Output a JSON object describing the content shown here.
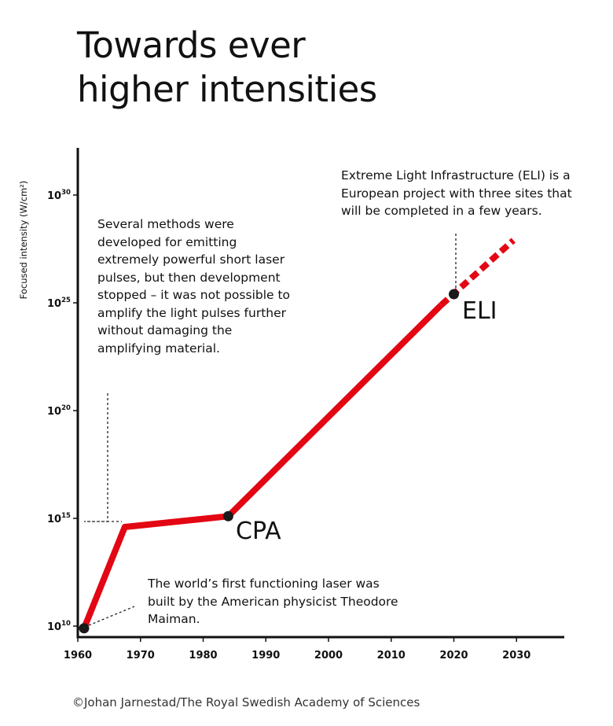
{
  "title_lines": [
    "Towards ever",
    "higher intensities"
  ],
  "credit": "©Johan Jarnestad/The Royal Swedish Academy of Sciences",
  "colors": {
    "line": "#e30613",
    "point": "#1a1a1a",
    "axis": "#111111"
  },
  "chart_data": {
    "type": "line",
    "title": "",
    "xlabel": "",
    "ylabel": "Focused intensity (W/cm²)",
    "y_scale": "log",
    "xlim": [
      1960,
      2037
    ],
    "ylim": [
      9.8,
      32.0
    ],
    "x_ticks": [
      1960,
      1970,
      1980,
      1990,
      2000,
      2010,
      2020,
      2030
    ],
    "y_ticks": [
      {
        "exp": 10,
        "label_base": "10",
        "label_exp": "10"
      },
      {
        "exp": 15,
        "label_base": "10",
        "label_exp": "15"
      },
      {
        "exp": 20,
        "label_base": "10",
        "label_exp": "20"
      },
      {
        "exp": 25,
        "label_base": "10",
        "label_exp": "25"
      },
      {
        "exp": 30,
        "label_base": "10",
        "label_exp": "30"
      }
    ],
    "series": [
      {
        "style": "solid",
        "points": [
          {
            "x": 1961,
            "y": 9.9
          },
          {
            "x": 1967.5,
            "y": 14.6
          },
          {
            "x": 1984,
            "y": 15.1
          },
          {
            "x": 2018,
            "y": 24.9
          }
        ]
      },
      {
        "style": "dashed",
        "points": [
          {
            "x": 2018,
            "y": 24.9
          },
          {
            "x": 2029.5,
            "y": 27.9
          }
        ]
      }
    ],
    "markers": [
      {
        "x": 1961,
        "y": 9.9,
        "label": ""
      },
      {
        "x": 1984,
        "y": 15.1,
        "label": "CPA"
      },
      {
        "x": 2020,
        "y": 25.4,
        "label": "ELI"
      }
    ],
    "annotations": [
      "Several methods were developed for emitting extremely powerful short laser pulses, but then development stopped – it was not possible to amplify the light pulses further without damaging the amplifying material.",
      "Extreme Light Infrastructure (ELI) is a European project with three sites that will be completed in a few years.",
      "The world’s first functioning laser was built by the American physicist Theodore Maiman."
    ]
  }
}
